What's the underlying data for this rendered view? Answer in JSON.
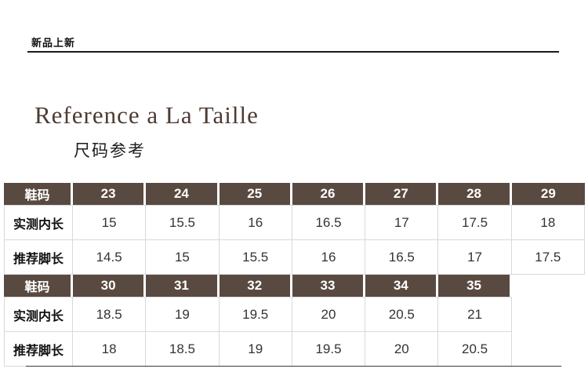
{
  "banner": {
    "label": "新品上新"
  },
  "title": "Reference a La Taille",
  "subtitle": "尺码参考",
  "colors": {
    "header_bg": "#594a41",
    "header_text": "#ffffff",
    "title_color": "#4d3b33",
    "border": "#d9d9d9"
  },
  "size_chart": {
    "sections": [
      {
        "header": [
          "鞋码",
          "23",
          "24",
          "25",
          "26",
          "27",
          "28",
          "29"
        ],
        "rows": [
          {
            "label": "实测内长",
            "values": [
              "15",
              "15.5",
              "16",
              "16.5",
              "17",
              "17.5",
              "18"
            ]
          },
          {
            "label": "推荐脚长",
            "values": [
              "14.5",
              "15",
              "15.5",
              "16",
              "16.5",
              "17",
              "17.5"
            ]
          }
        ]
      },
      {
        "header": [
          "鞋码",
          "30",
          "31",
          "32",
          "33",
          "34",
          "35",
          ""
        ],
        "rows": [
          {
            "label": "实测内长",
            "values": [
              "18.5",
              "19",
              "19.5",
              "20",
              "20.5",
              "21",
              ""
            ]
          },
          {
            "label": "推荐脚长",
            "values": [
              "18",
              "18.5",
              "19",
              "19.5",
              "20",
              "20.5",
              ""
            ]
          }
        ]
      }
    ]
  }
}
